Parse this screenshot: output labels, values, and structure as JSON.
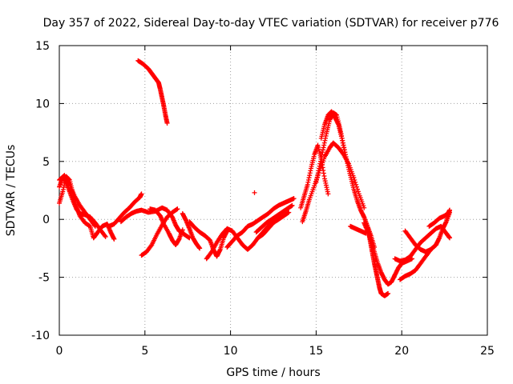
{
  "chart_data": {
    "type": "scatter",
    "title": "Day 357 of 2022, Sidereal Day-to-day VTEC variation (SDTVAR) for receiver p776",
    "xlabel": "GPS time / hours",
    "ylabel": "SDTVAR / TECUs",
    "xlim": [
      0,
      25
    ],
    "ylim": [
      -10,
      15
    ],
    "xticks": [
      "0",
      "5",
      "10",
      "15",
      "20",
      "25"
    ],
    "yticks": [
      "-10",
      "-5",
      "0",
      "5",
      "10",
      "15"
    ],
    "grid": true,
    "marker": "+",
    "color": "#ff0000",
    "series": [
      {
        "name": "SDTVAR",
        "segments": [
          [
            [
              0.0,
              2.8
            ],
            [
              0.2,
              3.6
            ],
            [
              0.4,
              3.2
            ],
            [
              0.6,
              2.4
            ],
            [
              0.8,
              1.6
            ],
            [
              1.0,
              0.9
            ],
            [
              1.2,
              0.5
            ],
            [
              1.5,
              0.4
            ],
            [
              1.8,
              0.2
            ],
            [
              2.1,
              -0.3
            ],
            [
              2.4,
              -0.9
            ],
            [
              2.7,
              -1.5
            ]
          ],
          [
            [
              0.0,
              1.4
            ],
            [
              0.2,
              2.4
            ],
            [
              0.4,
              3.7
            ],
            [
              0.6,
              3.4
            ],
            [
              0.8,
              2.2
            ],
            [
              1.0,
              1.1
            ],
            [
              1.2,
              0.3
            ],
            [
              1.5,
              -0.3
            ],
            [
              1.8,
              -0.6
            ],
            [
              2.0,
              -1.6
            ],
            [
              2.2,
              -1.2
            ],
            [
              2.5,
              -0.6
            ],
            [
              2.8,
              -0.4
            ],
            [
              3.0,
              -1.1
            ],
            [
              3.2,
              -1.7
            ]
          ],
          [
            [
              0.0,
              3.4
            ],
            [
              0.3,
              3.8
            ],
            [
              0.6,
              3.0
            ],
            [
              0.9,
              2.0
            ],
            [
              1.2,
              1.2
            ],
            [
              1.5,
              0.6
            ],
            [
              1.8,
              0.0
            ],
            [
              2.1,
              -0.6
            ]
          ],
          [
            [
              2.9,
              -0.6
            ],
            [
              3.2,
              -0.4
            ],
            [
              3.5,
              0.1
            ],
            [
              3.8,
              0.6
            ],
            [
              4.1,
              1.0
            ],
            [
              4.4,
              1.5
            ],
            [
              4.7,
              1.9
            ],
            [
              4.8,
              2.2
            ]
          ],
          [
            [
              3.6,
              -0.2
            ],
            [
              3.9,
              0.2
            ],
            [
              4.2,
              0.5
            ],
            [
              4.5,
              0.7
            ],
            [
              4.8,
              0.8
            ],
            [
              5.2,
              0.6
            ],
            [
              5.6,
              0.7
            ],
            [
              6.0,
              1.0
            ],
            [
              6.3,
              0.8
            ],
            [
              6.6,
              0.2
            ],
            [
              6.8,
              -0.5
            ],
            [
              7.0,
              -1.0
            ],
            [
              7.3,
              -1.3
            ],
            [
              7.6,
              -1.6
            ]
          ],
          [
            [
              4.8,
              -3.1
            ],
            [
              5.1,
              -2.8
            ],
            [
              5.4,
              -2.2
            ],
            [
              5.7,
              -1.3
            ],
            [
              6.0,
              -0.5
            ],
            [
              6.3,
              0.2
            ],
            [
              6.6,
              0.6
            ],
            [
              6.9,
              0.9
            ]
          ],
          [
            [
              5.3,
              0.9
            ],
            [
              5.6,
              0.8
            ],
            [
              5.9,
              0.3
            ],
            [
              6.1,
              -0.4
            ],
            [
              6.4,
              -1.2
            ],
            [
              6.6,
              -1.8
            ],
            [
              6.8,
              -2.2
            ],
            [
              7.0,
              -1.7
            ],
            [
              7.2,
              -0.9
            ]
          ],
          [
            [
              7.2,
              0.5
            ],
            [
              7.4,
              -0.1
            ],
            [
              7.6,
              -0.8
            ],
            [
              7.8,
              -1.6
            ],
            [
              8.0,
              -2.1
            ],
            [
              8.2,
              -2.5
            ]
          ],
          [
            [
              7.6,
              -0.2
            ],
            [
              7.9,
              -0.7
            ],
            [
              8.2,
              -1.1
            ],
            [
              8.5,
              -1.4
            ],
            [
              8.8,
              -1.8
            ],
            [
              9.0,
              -2.6
            ],
            [
              9.2,
              -3.2
            ],
            [
              9.4,
              -2.6
            ],
            [
              9.6,
              -1.6
            ],
            [
              9.8,
              -1.0
            ]
          ],
          [
            [
              8.6,
              -3.4
            ],
            [
              8.9,
              -2.8
            ],
            [
              9.2,
              -2.0
            ],
            [
              9.5,
              -1.3
            ],
            [
              9.8,
              -0.8
            ],
            [
              10.1,
              -1.0
            ],
            [
              10.4,
              -1.6
            ],
            [
              10.7,
              -2.2
            ],
            [
              11.0,
              -2.6
            ],
            [
              11.3,
              -2.2
            ],
            [
              11.6,
              -1.6
            ],
            [
              11.9,
              -1.1
            ],
            [
              12.2,
              -0.6
            ],
            [
              12.5,
              -0.2
            ]
          ],
          [
            [
              9.8,
              -2.4
            ],
            [
              10.1,
              -1.9
            ],
            [
              10.4,
              -1.4
            ],
            [
              10.7,
              -1.1
            ],
            [
              11.0,
              -0.6
            ],
            [
              11.3,
              -0.4
            ],
            [
              11.6,
              -0.1
            ],
            [
              11.9,
              0.2
            ],
            [
              12.2,
              0.5
            ],
            [
              12.5,
              0.9
            ],
            [
              12.8,
              1.2
            ],
            [
              13.1,
              1.4
            ],
            [
              13.4,
              1.6
            ],
            [
              13.7,
              1.8
            ]
          ],
          [
            [
              11.5,
              -1.1
            ],
            [
              11.8,
              -0.7
            ],
            [
              12.1,
              -0.3
            ],
            [
              12.4,
              0.0
            ],
            [
              12.7,
              0.3
            ],
            [
              13.0,
              0.6
            ],
            [
              13.3,
              0.9
            ],
            [
              13.6,
              1.2
            ]
          ],
          [
            [
              11.6,
              -1.6
            ],
            [
              11.9,
              -1.3
            ],
            [
              12.2,
              -0.8
            ],
            [
              12.5,
              -0.3
            ],
            [
              12.8,
              0.0
            ],
            [
              13.1,
              0.3
            ],
            [
              13.4,
              0.6
            ]
          ],
          [
            [
              14.1,
              1.0
            ],
            [
              14.3,
              2.0
            ],
            [
              14.5,
              3.0
            ],
            [
              14.7,
              4.4
            ],
            [
              14.9,
              5.6
            ],
            [
              15.1,
              6.4
            ],
            [
              15.3,
              5.2
            ],
            [
              15.5,
              3.5
            ],
            [
              15.7,
              2.2
            ]
          ],
          [
            [
              14.2,
              -0.2
            ],
            [
              14.4,
              0.7
            ],
            [
              14.6,
              1.7
            ],
            [
              14.9,
              2.9
            ],
            [
              15.2,
              4.2
            ],
            [
              15.5,
              5.4
            ],
            [
              15.8,
              6.2
            ],
            [
              16.0,
              6.6
            ],
            [
              16.3,
              6.2
            ],
            [
              16.6,
              5.6
            ],
            [
              16.9,
              4.8
            ],
            [
              17.2,
              3.6
            ],
            [
              17.5,
              2.2
            ],
            [
              17.8,
              1.0
            ]
          ],
          [
            [
              15.0,
              3.2
            ],
            [
              15.2,
              4.6
            ],
            [
              15.4,
              6.0
            ],
            [
              15.6,
              7.4
            ],
            [
              15.8,
              8.6
            ],
            [
              16.0,
              9.2
            ],
            [
              16.2,
              9.0
            ],
            [
              16.4,
              7.8
            ],
            [
              16.6,
              6.4
            ],
            [
              16.8,
              5.0
            ],
            [
              17.0,
              3.8
            ],
            [
              17.2,
              2.6
            ],
            [
              17.4,
              1.6
            ],
            [
              17.6,
              0.8
            ],
            [
              17.8,
              0.2
            ],
            [
              18.0,
              -0.6
            ],
            [
              18.2,
              -1.4
            ],
            [
              18.4,
              -2.4
            ]
          ],
          [
            [
              15.3,
              7.0
            ],
            [
              15.5,
              8.2
            ],
            [
              15.7,
              9.0
            ],
            [
              15.9,
              9.3
            ],
            [
              16.1,
              8.8
            ],
            [
              16.3,
              8.2
            ],
            [
              16.5,
              7.0
            ],
            [
              16.7,
              5.6
            ]
          ],
          [
            [
              17.0,
              -0.6
            ],
            [
              17.3,
              -0.8
            ],
            [
              17.6,
              -1.0
            ],
            [
              17.9,
              -1.2
            ]
          ],
          [
            [
              18.0,
              -0.8
            ],
            [
              18.1,
              -1.4
            ],
            [
              18.2,
              -2.2
            ],
            [
              18.3,
              -3.0
            ],
            [
              18.4,
              -3.8
            ],
            [
              18.5,
              -4.5
            ],
            [
              18.6,
              -5.2
            ],
            [
              18.7,
              -5.9
            ],
            [
              18.8,
              -6.4
            ],
            [
              19.0,
              -6.6
            ],
            [
              19.2,
              -6.4
            ]
          ],
          [
            [
              17.8,
              -0.3
            ],
            [
              18.0,
              -1.0
            ],
            [
              18.2,
              -1.8
            ],
            [
              18.4,
              -2.8
            ],
            [
              18.6,
              -3.8
            ],
            [
              18.8,
              -4.6
            ],
            [
              19.0,
              -5.2
            ],
            [
              19.2,
              -5.6
            ],
            [
              19.4,
              -5.4
            ],
            [
              19.6,
              -4.8
            ],
            [
              19.8,
              -4.2
            ],
            [
              20.0,
              -3.8
            ],
            [
              20.3,
              -3.6
            ],
            [
              20.6,
              -3.4
            ]
          ],
          [
            [
              19.6,
              -3.4
            ],
            [
              19.9,
              -3.6
            ],
            [
              20.2,
              -3.5
            ],
            [
              20.5,
              -3.2
            ],
            [
              20.8,
              -2.6
            ],
            [
              21.1,
              -2.0
            ],
            [
              21.4,
              -1.6
            ],
            [
              21.7,
              -1.2
            ],
            [
              22.0,
              -0.8
            ],
            [
              22.3,
              -0.6
            ],
            [
              22.6,
              -1.2
            ],
            [
              22.8,
              -1.6
            ]
          ],
          [
            [
              19.9,
              -5.2
            ],
            [
              20.2,
              -4.9
            ],
            [
              20.5,
              -4.7
            ],
            [
              20.8,
              -4.4
            ],
            [
              21.1,
              -3.8
            ],
            [
              21.4,
              -3.2
            ],
            [
              21.7,
              -2.6
            ],
            [
              22.0,
              -2.2
            ]
          ],
          [
            [
              20.2,
              -1.0
            ],
            [
              20.5,
              -1.6
            ],
            [
              20.8,
              -2.2
            ],
            [
              21.1,
              -2.6
            ],
            [
              21.4,
              -2.8
            ],
            [
              21.7,
              -2.6
            ],
            [
              22.0,
              -2.2
            ],
            [
              22.2,
              -1.6
            ],
            [
              22.4,
              -0.8
            ],
            [
              22.6,
              -0.2
            ],
            [
              22.8,
              0.6
            ]
          ],
          [
            [
              21.6,
              -0.6
            ],
            [
              21.9,
              -0.3
            ],
            [
              22.2,
              0.1
            ],
            [
              22.5,
              0.3
            ],
            [
              22.7,
              0.5
            ],
            [
              22.8,
              0.8
            ]
          ]
        ],
        "isolated": [
          [
            11.4,
            2.3
          ]
        ],
        "offset_track": [
          [
            4.6,
            13.7
          ],
          [
            4.9,
            13.4
          ],
          [
            5.2,
            13.0
          ],
          [
            5.4,
            12.6
          ],
          [
            5.6,
            12.2
          ],
          [
            5.8,
            11.8
          ],
          [
            5.9,
            11.2
          ],
          [
            6.0,
            10.5
          ],
          [
            6.1,
            9.8
          ],
          [
            6.2,
            9.0
          ],
          [
            6.3,
            8.3
          ]
        ]
      }
    ]
  }
}
